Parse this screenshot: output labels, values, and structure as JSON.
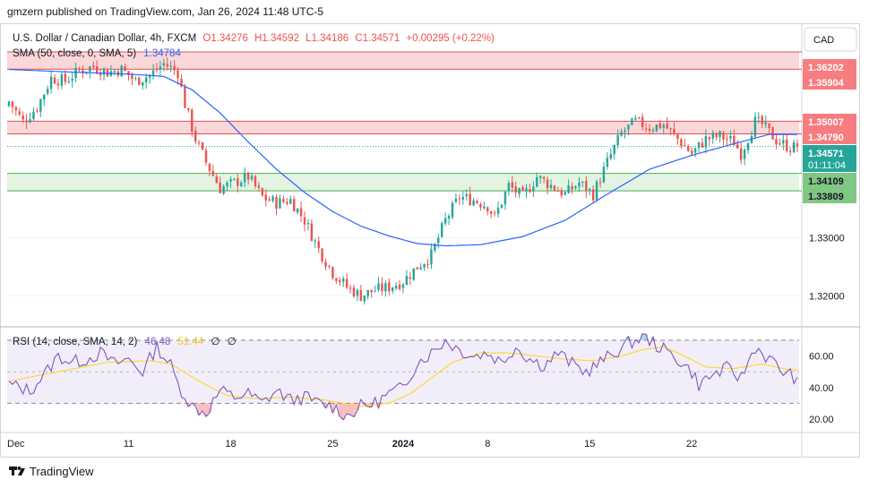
{
  "header": {
    "published": "gmzern published on TradingView.com, Jan 26, 2024 11:48 UTC-5"
  },
  "legend": {
    "symbol": "U.S. Dollar / Canadian Dollar, 4h, FXCM",
    "ohlc_o": "O1.34276",
    "ohlc_h": "H1.34592",
    "ohlc_l": "L1.34186",
    "ohlc_c": "C1.34571",
    "change": "+0.00295 (+0.22%)",
    "sma_label": "SMA (50, close, 0, SMA, 5)",
    "sma_value": "1.34784"
  },
  "rsi_legend": {
    "label": "RSI (14, close, SMA, 14, 2)",
    "rsi_value": "46.48",
    "rsi_sma_value": "51.44",
    "extra1": "∅",
    "extra2": "∅"
  },
  "currency_button": "CAD",
  "price_labels": {
    "zone1_top": "1.36202",
    "zone1_bottom": "1.35904",
    "zone2_top": "1.35007",
    "zone2_bottom": "1.34790",
    "current_price": "1.34571",
    "countdown": "01:11:04",
    "zone3_top": "1.34109",
    "zone3_bottom": "1.33809"
  },
  "footer": {
    "brand": "TradingView"
  },
  "colors": {
    "up": "#26a69a",
    "down": "#ef5350",
    "sma": "#2962ff",
    "rsi": "#7e57c2",
    "rsi_sma": "#fdd835",
    "resistance_fill": "#f8c9cc",
    "support_fill": "#d9f0d9",
    "resistance_border": "#e05050",
    "support_border": "#4caf50"
  },
  "chart_data": [
    {
      "type": "candlestick",
      "title": "U.S. Dollar / Canadian Dollar, 4h, FXCM",
      "x_tick_labels": [
        "Dec",
        "11",
        "18",
        "25",
        "2024",
        "8",
        "15",
        "22"
      ],
      "y_tick_labels": [
        "1.32000",
        "1.33000"
      ],
      "ylim": [
        1.3148,
        1.3668
      ],
      "zones": [
        {
          "kind": "resistance",
          "top": 1.36202,
          "bottom": 1.35904
        },
        {
          "kind": "resistance",
          "top": 1.35007,
          "bottom": 1.3479
        },
        {
          "kind": "support",
          "top": 1.34109,
          "bottom": 1.33809
        }
      ],
      "current_price": 1.34571,
      "close_path": [
        [
          0,
          1.3535
        ],
        [
          4,
          1.35
        ],
        [
          8,
          1.3525
        ],
        [
          12,
          1.3575
        ],
        [
          16,
          1.357
        ],
        [
          20,
          1.3588
        ],
        [
          24,
          1.3595
        ],
        [
          28,
          1.3585
        ],
        [
          32,
          1.359
        ],
        [
          36,
          1.357
        ],
        [
          40,
          1.358
        ],
        [
          44,
          1.36
        ],
        [
          48,
          1.3585
        ],
        [
          50,
          1.353
        ],
        [
          53,
          1.347
        ],
        [
          56,
          1.343
        ],
        [
          60,
          1.3385
        ],
        [
          64,
          1.3395
        ],
        [
          68,
          1.3405
        ],
        [
          72,
          1.337
        ],
        [
          76,
          1.336
        ],
        [
          80,
          1.3365
        ],
        [
          84,
          1.333
        ],
        [
          88,
          1.328
        ],
        [
          92,
          1.324
        ],
        [
          96,
          1.3215
        ],
        [
          100,
          1.32
        ],
        [
          104,
          1.321
        ],
        [
          108,
          1.3215
        ],
        [
          112,
          1.3225
        ],
        [
          116,
          1.325
        ],
        [
          120,
          1.327
        ],
        [
          124,
          1.333
        ],
        [
          128,
          1.337
        ],
        [
          132,
          1.3365
        ],
        [
          136,
          1.3355
        ],
        [
          138,
          1.3335
        ],
        [
          142,
          1.339
        ],
        [
          146,
          1.337
        ],
        [
          150,
          1.3405
        ],
        [
          154,
          1.339
        ],
        [
          158,
          1.3375
        ],
        [
          162,
          1.3395
        ],
        [
          166,
          1.3375
        ],
        [
          170,
          1.343
        ],
        [
          174,
          1.348
        ],
        [
          178,
          1.35
        ],
        [
          182,
          1.349
        ],
        [
          186,
          1.3495
        ],
        [
          190,
          1.347
        ],
        [
          194,
          1.3445
        ],
        [
          198,
          1.347
        ],
        [
          202,
          1.3475
        ],
        [
          206,
          1.3465
        ],
        [
          208,
          1.3445
        ],
        [
          212,
          1.35
        ],
        [
          214,
          1.3495
        ],
        [
          218,
          1.3468
        ],
        [
          222,
          1.3455
        ],
        [
          224,
          1.3457
        ]
      ],
      "sma_path": [
        [
          0,
          1.359
        ],
        [
          20,
          1.3585
        ],
        [
          34,
          1.3582
        ],
        [
          44,
          1.3578
        ],
        [
          52,
          1.3555
        ],
        [
          60,
          1.3515
        ],
        [
          68,
          1.3465
        ],
        [
          76,
          1.3418
        ],
        [
          84,
          1.3378
        ],
        [
          92,
          1.3345
        ],
        [
          100,
          1.332
        ],
        [
          108,
          1.3303
        ],
        [
          116,
          1.329
        ],
        [
          124,
          1.3286
        ],
        [
          134,
          1.3288
        ],
        [
          146,
          1.3302
        ],
        [
          158,
          1.333
        ],
        [
          170,
          1.3375
        ],
        [
          182,
          1.3418
        ],
        [
          194,
          1.3442
        ],
        [
          206,
          1.3462
        ],
        [
          216,
          1.3478
        ],
        [
          224,
          1.3478
        ]
      ]
    },
    {
      "type": "line",
      "title": "RSI (14, close, SMA, 14, 2)",
      "y_tick_labels": [
        "20.00",
        "40.00",
        "60.00"
      ],
      "ylim": [
        12,
        78
      ],
      "bands": [
        70,
        50,
        30
      ],
      "rsi_path": [
        [
          0,
          42
        ],
        [
          6,
          38
        ],
        [
          10,
          48
        ],
        [
          14,
          60
        ],
        [
          18,
          56
        ],
        [
          22,
          58
        ],
        [
          26,
          62
        ],
        [
          30,
          55
        ],
        [
          34,
          58
        ],
        [
          38,
          50
        ],
        [
          42,
          66
        ],
        [
          46,
          54
        ],
        [
          48,
          42
        ],
        [
          52,
          28
        ],
        [
          56,
          24
        ],
        [
          60,
          38
        ],
        [
          64,
          34
        ],
        [
          68,
          36
        ],
        [
          72,
          30
        ],
        [
          76,
          38
        ],
        [
          80,
          32
        ],
        [
          84,
          34
        ],
        [
          88,
          30
        ],
        [
          92,
          28
        ],
        [
          96,
          22
        ],
        [
          100,
          28
        ],
        [
          104,
          30
        ],
        [
          108,
          36
        ],
        [
          112,
          40
        ],
        [
          116,
          56
        ],
        [
          120,
          62
        ],
        [
          124,
          70
        ],
        [
          128,
          64
        ],
        [
          132,
          60
        ],
        [
          136,
          62
        ],
        [
          140,
          56
        ],
        [
          144,
          66
        ],
        [
          148,
          58
        ],
        [
          152,
          54
        ],
        [
          156,
          62
        ],
        [
          160,
          55
        ],
        [
          164,
          50
        ],
        [
          168,
          56
        ],
        [
          172,
          62
        ],
        [
          176,
          68
        ],
        [
          180,
          72
        ],
        [
          182,
          70
        ],
        [
          186,
          64
        ],
        [
          190,
          58
        ],
        [
          194,
          50
        ],
        [
          196,
          42
        ],
        [
          200,
          48
        ],
        [
          204,
          52
        ],
        [
          208,
          46
        ],
        [
          212,
          66
        ],
        [
          216,
          58
        ],
        [
          220,
          50
        ],
        [
          224,
          46
        ]
      ],
      "rsi_sma_path": [
        [
          0,
          44
        ],
        [
          14,
          50
        ],
        [
          28,
          56
        ],
        [
          40,
          57
        ],
        [
          46,
          55
        ],
        [
          54,
          44
        ],
        [
          62,
          35
        ],
        [
          70,
          33
        ],
        [
          80,
          34
        ],
        [
          90,
          32
        ],
        [
          100,
          28
        ],
        [
          108,
          30
        ],
        [
          114,
          36
        ],
        [
          120,
          46
        ],
        [
          126,
          56
        ],
        [
          134,
          62
        ],
        [
          142,
          62
        ],
        [
          150,
          60
        ],
        [
          158,
          58
        ],
        [
          166,
          57
        ],
        [
          174,
          60
        ],
        [
          180,
          64
        ],
        [
          186,
          66
        ],
        [
          192,
          60
        ],
        [
          198,
          53
        ],
        [
          206,
          52
        ],
        [
          214,
          55
        ],
        [
          220,
          52
        ],
        [
          224,
          51
        ]
      ]
    }
  ]
}
